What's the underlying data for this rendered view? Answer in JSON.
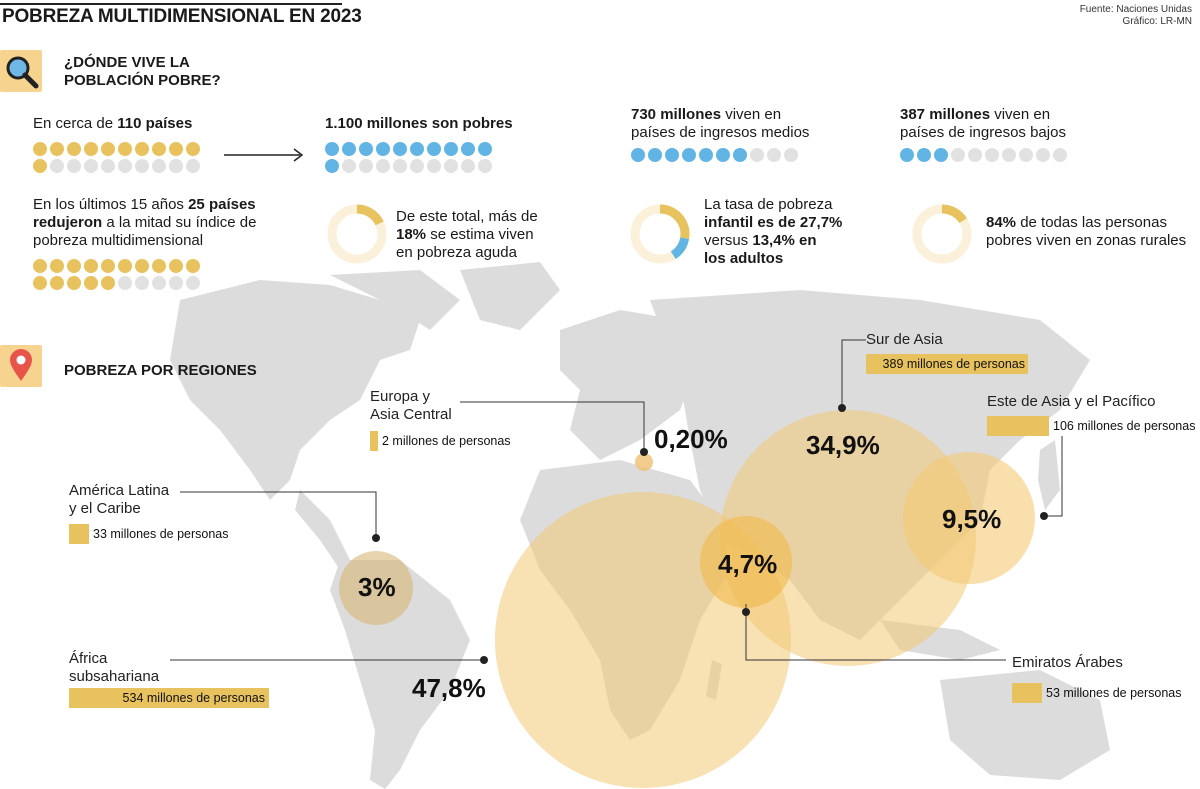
{
  "header": {
    "title": "POBREZA MULTIDIMENSIONAL EN 2023",
    "source_line1": "Fuente: Naciones Unidas",
    "source_line2": "Gráfico: LR-MN"
  },
  "section1": {
    "heading_line1": "¿DÓNDE VIVE LA",
    "heading_line2": "POBLACIÓN POBRE?",
    "icon": "magnifier-icon"
  },
  "stats": {
    "countries_pre": "En cerca de ",
    "countries_bold": "110 países",
    "countries_dots_filled": 11,
    "countries_dots_total": 20,
    "poor_bold": "1.100 millones son pobres",
    "poor_dots_filled": 11,
    "poor_dots_total": 20,
    "middle_bold": "730 millones",
    "middle_rest1": " viven en",
    "middle_rest2": "países de ingresos medios",
    "middle_dots_filled": 7,
    "middle_dots_total": 10,
    "low_bold": "387 millones",
    "low_rest1": " viven en",
    "low_rest2": "países de ingresos bajos",
    "low_dots_filled": 3,
    "low_dots_total": 10,
    "reduced_pre": "En los últimos 15 años ",
    "reduced_bold1": "25 países",
    "reduced_bold2": "redujeron",
    "reduced_rest": " a la mitad su índice de",
    "reduced_line3": "pobreza multidimensional",
    "reduced_dots_filled": 15,
    "reduced_dots_total": 20,
    "acute_line1": "De este total, más de",
    "acute_bold": "18%",
    "acute_rest": " se estima viven",
    "acute_line3": "en pobreza aguda",
    "acute_pct": 18,
    "child_line1": "La tasa de pobreza",
    "child_bold1": "infantil es de 27,7%",
    "child_pre2": "versus ",
    "child_bold2": "13,4% en",
    "child_bold3": "los adultos",
    "child_pct": 27.7,
    "adult_pct": 13.4,
    "rural_bold": "84%",
    "rural_rest": " de todas las personas",
    "rural_line2": "pobres viven en zonas rurales",
    "rural_pct": 84
  },
  "section2": {
    "heading": "POBREZA POR REGIONES",
    "icon": "map-pin-icon"
  },
  "regions": [
    {
      "id": "latam",
      "name1": "América Latina",
      "name2": "y el Caribe",
      "people": "33 millones de personas",
      "pct": "3%"
    },
    {
      "id": "europe",
      "name1": "Europa y",
      "name2": "Asia Central",
      "people": "2 millones de personas",
      "pct": "0,20%"
    },
    {
      "id": "africa",
      "name1": "África",
      "name2": "subsahariana",
      "people": "534 millones de personas",
      "pct": "47,8%"
    },
    {
      "id": "southasia",
      "name1": "Sur de Asia",
      "name2": "",
      "people": "389 millones de personas",
      "pct": "34,9%"
    },
    {
      "id": "eastasia",
      "name1": "Este de Asia y el Pacífico",
      "name2": "",
      "people": "106 millones de personas",
      "pct": "9,5%"
    },
    {
      "id": "arab",
      "name1": "Emiratos Árabes",
      "name2": "",
      "people": "53 millones de personas",
      "pct": "4,7%"
    }
  ],
  "colors": {
    "accent": "#e8c25e",
    "blue": "#62b4e4",
    "map": "#dcdcdc",
    "bubble": "#f3c975"
  }
}
